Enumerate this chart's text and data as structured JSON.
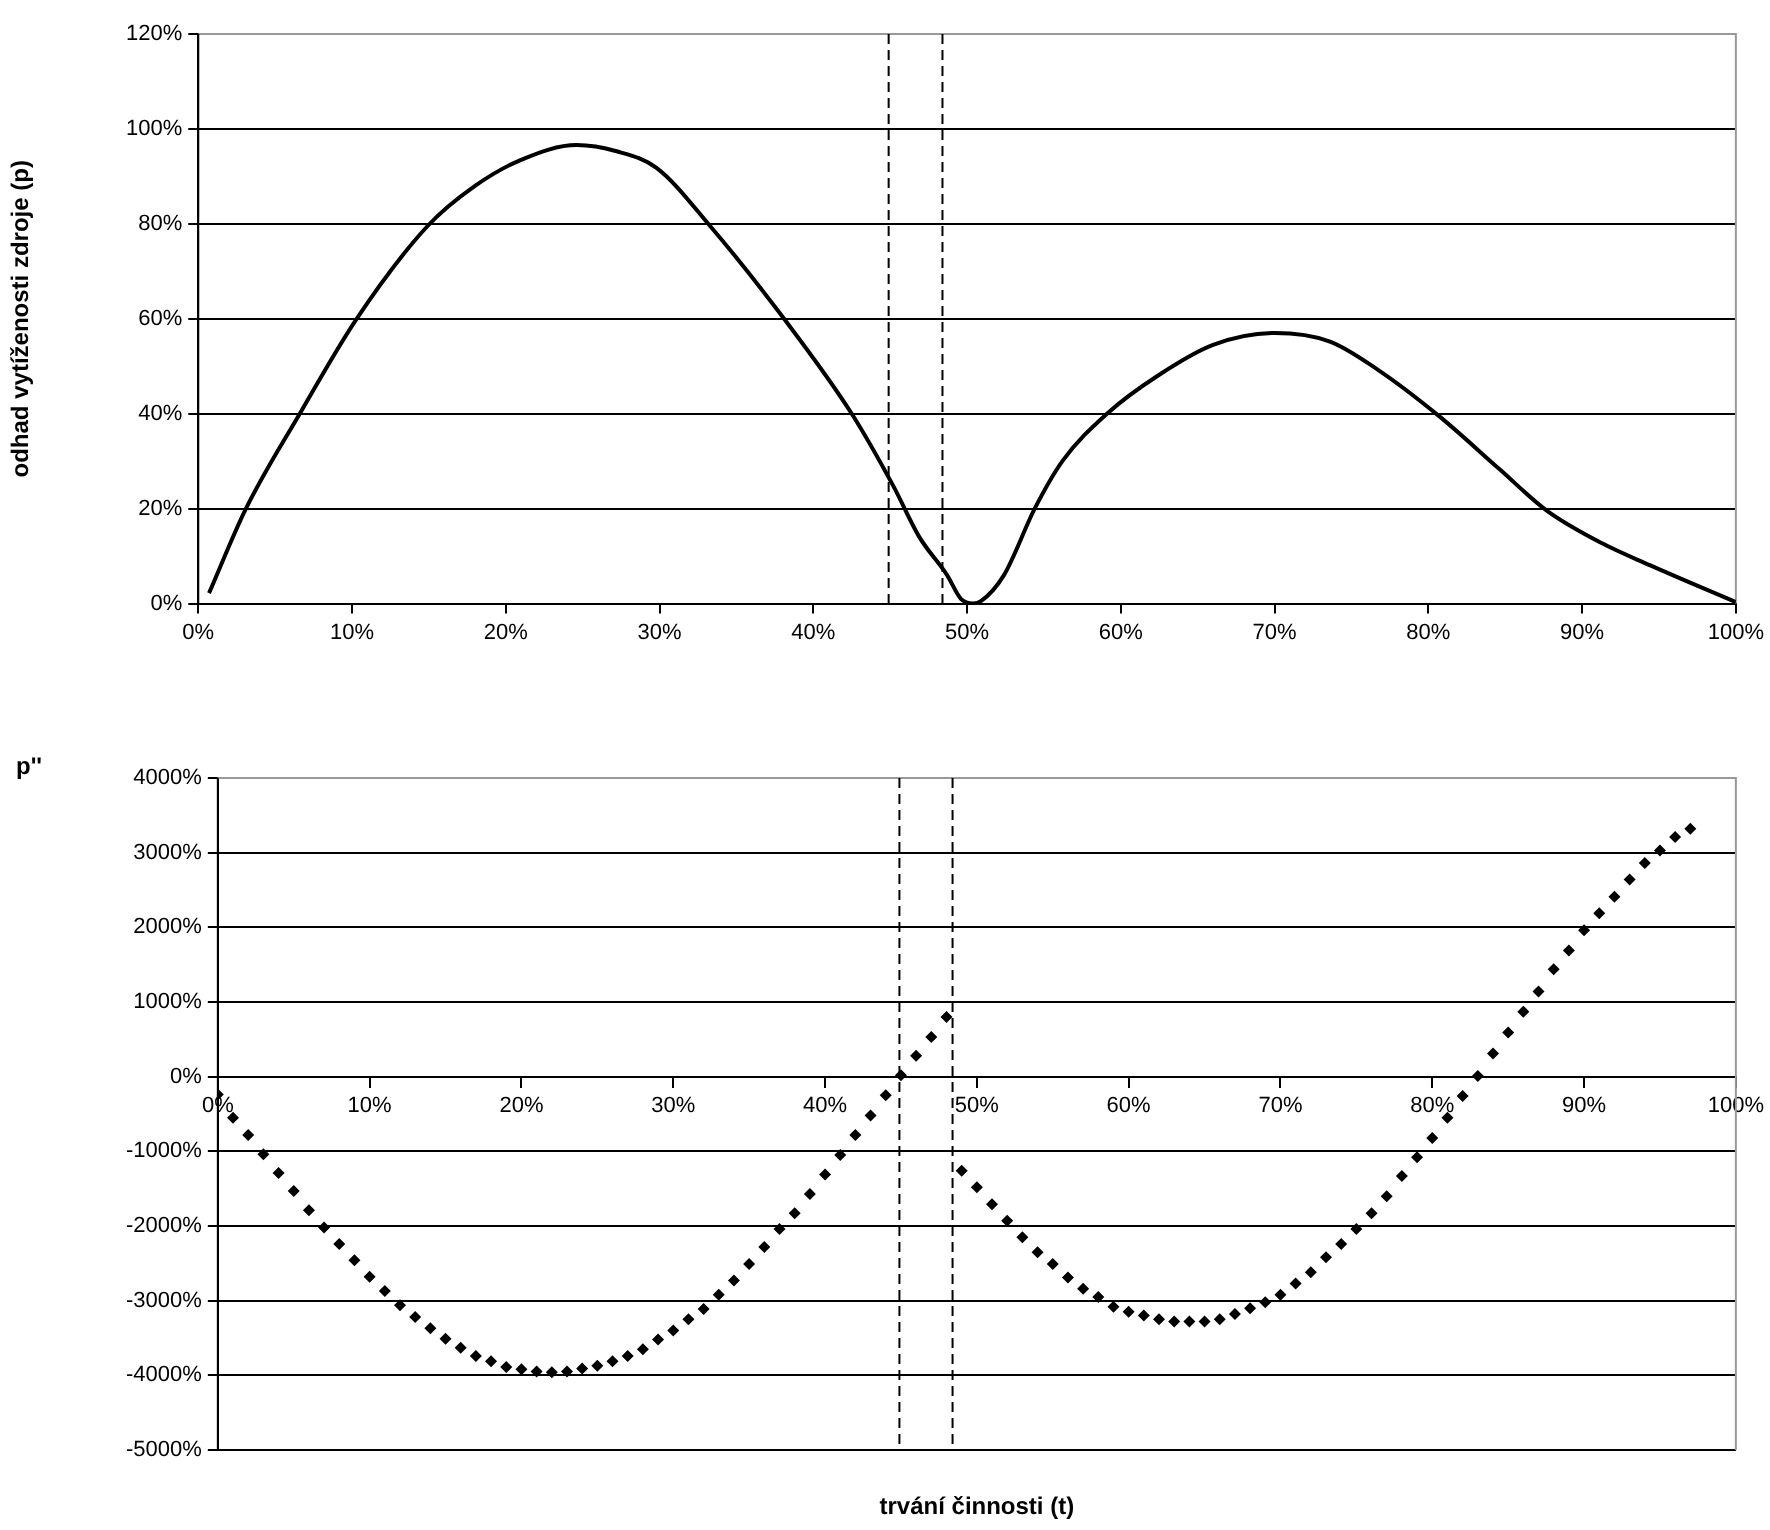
{
  "chart_data": [
    {
      "type": "line",
      "ylabel": "odhad vytíženosti zdroje (p)",
      "marker": "none",
      "line_style": "solid",
      "grid": "y",
      "legend": false,
      "x": [
        0.7,
        3.1,
        6.6,
        10.3,
        14.9,
        18,
        21,
        24.6,
        27.2,
        29.8,
        33.3,
        38.1,
        42.5,
        45.2,
        46.9,
        48.7,
        49.6,
        50.4,
        50.9,
        52.4,
        54.4,
        56.2,
        59.1,
        62.4,
        66,
        70,
        73.6,
        76.7,
        80.7,
        84.6,
        87.7,
        91.3,
        94.4,
        100
      ],
      "series": [
        {
          "color": "#000000",
          "values": [
            2.2,
            20,
            40,
            60,
            79.5,
            88,
            93.5,
            96.6,
            95.3,
            91.8,
            79.5,
            60,
            40,
            24.8,
            14,
            6,
            1,
            0,
            0.5,
            6,
            20,
            30,
            40,
            48,
            54.5,
            57,
            55.2,
            49.3,
            39.5,
            28.4,
            19.6,
            12.7,
            8.1,
            0.3
          ]
        }
      ],
      "xlim": [
        0,
        100
      ],
      "xticks": [
        {
          "value": 0,
          "label": "0%"
        },
        {
          "value": 10,
          "label": "10%"
        },
        {
          "value": 20,
          "label": "20%"
        },
        {
          "value": 30,
          "label": "30%"
        },
        {
          "value": 40,
          "label": "40%"
        },
        {
          "value": 50,
          "label": "50%"
        },
        {
          "value": 60,
          "label": "60%"
        },
        {
          "value": 70,
          "label": "70%"
        },
        {
          "value": 80,
          "label": "80%"
        },
        {
          "value": 90,
          "label": "90%"
        },
        {
          "value": 100,
          "label": "100%"
        }
      ],
      "ylim": [
        0,
        120
      ],
      "yticks": [
        {
          "value": 0,
          "label": "0%"
        },
        {
          "value": 20,
          "label": "20%"
        },
        {
          "value": 40,
          "label": "40%"
        },
        {
          "value": 60,
          "label": "60%"
        },
        {
          "value": 80,
          "label": "80%"
        },
        {
          "value": 100,
          "label": "100%"
        },
        {
          "value": 120,
          "label": "120%"
        }
      ],
      "ref_lines": [
        {
          "axis": "x",
          "value": 44.9,
          "color": "#000000",
          "line_style": "dashed"
        },
        {
          "axis": "x",
          "value": 48.4,
          "color": "#000000",
          "line_style": "dashed"
        }
      ]
    },
    {
      "type": "scatter",
      "ylabel": "p''",
      "xlabel": "trvání činnosti (t)",
      "marker": "diamond",
      "grid": "y",
      "legend": false,
      "x": [
        0,
        1,
        2,
        3,
        4,
        5,
        6,
        7,
        8,
        9,
        10,
        11,
        12,
        13,
        14,
        15,
        16,
        17,
        18,
        19,
        20,
        21,
        22,
        23,
        24,
        25,
        26,
        27,
        28,
        29,
        30,
        31,
        32,
        33,
        34,
        35,
        36,
        37,
        38,
        39,
        40,
        41,
        42,
        43,
        44,
        45,
        46,
        47,
        48,
        49,
        50,
        51,
        52,
        53,
        54,
        55,
        56,
        57,
        58,
        59,
        60,
        61,
        62,
        63,
        64,
        65,
        66,
        67,
        68,
        69,
        70,
        71,
        72,
        73,
        74,
        75,
        76,
        77,
        78,
        79,
        80,
        81,
        82,
        83,
        84,
        85,
        86,
        87,
        88,
        89,
        90,
        91,
        92,
        93,
        94,
        95,
        96,
        97
      ],
      "series": [
        {
          "color": "#000000",
          "values": [
            -240,
            -550,
            -780,
            -1040,
            -1290,
            -1530,
            -1790,
            -2020,
            -2240,
            -2460,
            -2680,
            -2870,
            -3060,
            -3220,
            -3370,
            -3510,
            -3630,
            -3740,
            -3810,
            -3890,
            -3920,
            -3950,
            -3960,
            -3950,
            -3910,
            -3870,
            -3810,
            -3740,
            -3650,
            -3520,
            -3400,
            -3250,
            -3110,
            -2920,
            -2730,
            -2510,
            -2280,
            -2040,
            -1830,
            -1570,
            -1310,
            -1050,
            -780,
            -520,
            -250,
            20,
            280,
            530,
            800,
            -1260,
            -1480,
            -1710,
            -1930,
            -2150,
            -2350,
            -2510,
            -2690,
            -2840,
            -2950,
            -3080,
            -3150,
            -3200,
            -3250,
            -3280,
            -3280,
            -3280,
            -3250,
            -3180,
            -3100,
            -3020,
            -2920,
            -2770,
            -2620,
            -2420,
            -2240,
            -2040,
            -1830,
            -1600,
            -1330,
            -1080,
            -820,
            -550,
            -260,
            10,
            310,
            590,
            870,
            1140,
            1440,
            1690,
            1960,
            2190,
            2410,
            2640,
            2860,
            3030,
            3210,
            3320
          ]
        }
      ],
      "xlim": [
        0,
        100
      ],
      "xticks": [
        {
          "value": 0,
          "label": "0%"
        },
        {
          "value": 10,
          "label": "10%"
        },
        {
          "value": 20,
          "label": "20%"
        },
        {
          "value": 30,
          "label": "30%"
        },
        {
          "value": 40,
          "label": "40%"
        },
        {
          "value": 50,
          "label": "50%"
        },
        {
          "value": 60,
          "label": "60%"
        },
        {
          "value": 70,
          "label": "70%"
        },
        {
          "value": 80,
          "label": "80%"
        },
        {
          "value": 90,
          "label": "90%"
        },
        {
          "value": 100,
          "label": "100%"
        }
      ],
      "ylim": [
        -5000,
        4000
      ],
      "yticks": [
        {
          "value": -5000,
          "label": "-5000%"
        },
        {
          "value": -4000,
          "label": "-4000%"
        },
        {
          "value": -3000,
          "label": "-3000%"
        },
        {
          "value": -2000,
          "label": "-2000%"
        },
        {
          "value": -1000,
          "label": "-1000%"
        },
        {
          "value": 0,
          "label": "0%"
        },
        {
          "value": 1000,
          "label": "1000%"
        },
        {
          "value": 2000,
          "label": "2000%"
        },
        {
          "value": 3000,
          "label": "3000%"
        },
        {
          "value": 4000,
          "label": "4000%"
        }
      ],
      "ref_lines": [
        {
          "axis": "x",
          "value": 44.9,
          "color": "#000000",
          "line_style": "dashed"
        },
        {
          "axis": "x",
          "value": 48.4,
          "color": "#000000",
          "line_style": "dashed"
        }
      ]
    }
  ]
}
